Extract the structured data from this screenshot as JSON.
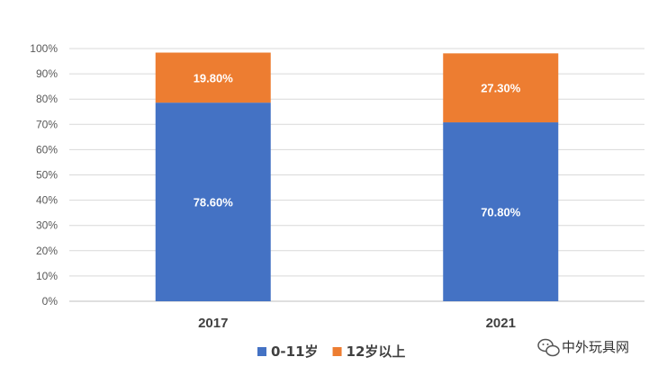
{
  "chart_data": {
    "type": "bar",
    "stacked": true,
    "categories": [
      "2017",
      "2021"
    ],
    "series": [
      {
        "name": "0-11岁",
        "values": [
          78.6,
          70.8
        ],
        "labels": [
          "78.60%",
          "70.80%"
        ],
        "color": "#4472C4"
      },
      {
        "name": "12岁以上",
        "values": [
          19.8,
          27.3
        ],
        "labels": [
          "19.80%",
          "27.30%"
        ],
        "color": "#ED7D31"
      }
    ],
    "yticks": [
      "0%",
      "10%",
      "20%",
      "30%",
      "40%",
      "50%",
      "60%",
      "70%",
      "80%",
      "90%",
      "100%"
    ],
    "ylim": [
      0,
      100
    ],
    "grid": true,
    "legend": "bottom"
  },
  "watermark": {
    "text": "中外玩具网",
    "icon": "wechat-icon"
  }
}
